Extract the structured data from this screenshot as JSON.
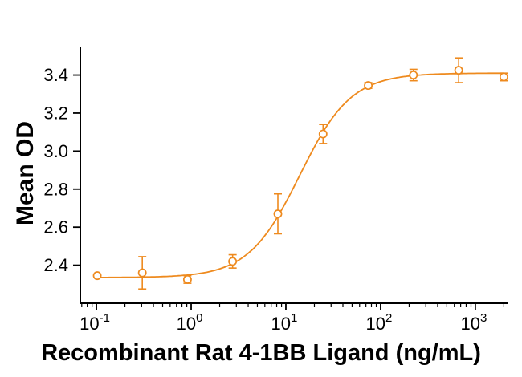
{
  "chart_data": {
    "type": "scatter",
    "subtype": "dose-response-curve-with-error-bars",
    "title": "",
    "xlabel": "Recombinant Rat 4-1BB Ligand (ng/mL)",
    "ylabel": "Mean OD",
    "x_scale": "log",
    "grid": false,
    "legend": "none",
    "xlim": [
      0.0676,
      2188
    ],
    "ylim": [
      2.2,
      3.55
    ],
    "axis_color": "#000000",
    "accent_color": "#EE8A1E",
    "x_ticks": [
      {
        "value": 0.1,
        "mantissa": "10",
        "exponent": "-1"
      },
      {
        "value": 1,
        "mantissa": "10",
        "exponent": "0"
      },
      {
        "value": 10,
        "mantissa": "10",
        "exponent": "1"
      },
      {
        "value": 100,
        "mantissa": "10",
        "exponent": "2"
      },
      {
        "value": 1000,
        "mantissa": "10",
        "exponent": "3"
      }
    ],
    "y_ticks": [
      {
        "value": 2.4,
        "label": "2.4"
      },
      {
        "value": 2.6,
        "label": "2.6"
      },
      {
        "value": 2.8,
        "label": "2.8"
      },
      {
        "value": 3.0,
        "label": "3.0"
      },
      {
        "value": 3.2,
        "label": "3.2"
      },
      {
        "value": 3.4,
        "label": "3.4"
      }
    ],
    "series": [
      {
        "name": "Mean OD",
        "color": "#EE8A1E",
        "marker": "open-circle",
        "x": [
          0.102,
          0.305,
          0.914,
          2.74,
          8.23,
          24.7,
          74.1,
          222,
          667,
          2000
        ],
        "y": [
          2.345,
          2.36,
          2.325,
          2.42,
          2.67,
          3.09,
          3.345,
          3.4,
          3.425,
          3.39
        ],
        "yerr": [
          0.0,
          0.085,
          0.02,
          0.035,
          0.105,
          0.05,
          0.015,
          0.03,
          0.065,
          0.02
        ],
        "fit": {
          "model": "4PL",
          "bottom": 2.335,
          "top": 3.41,
          "ec50": 14,
          "hill": 1.6
        },
        "curve_range": [
          0.102,
          2000
        ]
      }
    ]
  }
}
